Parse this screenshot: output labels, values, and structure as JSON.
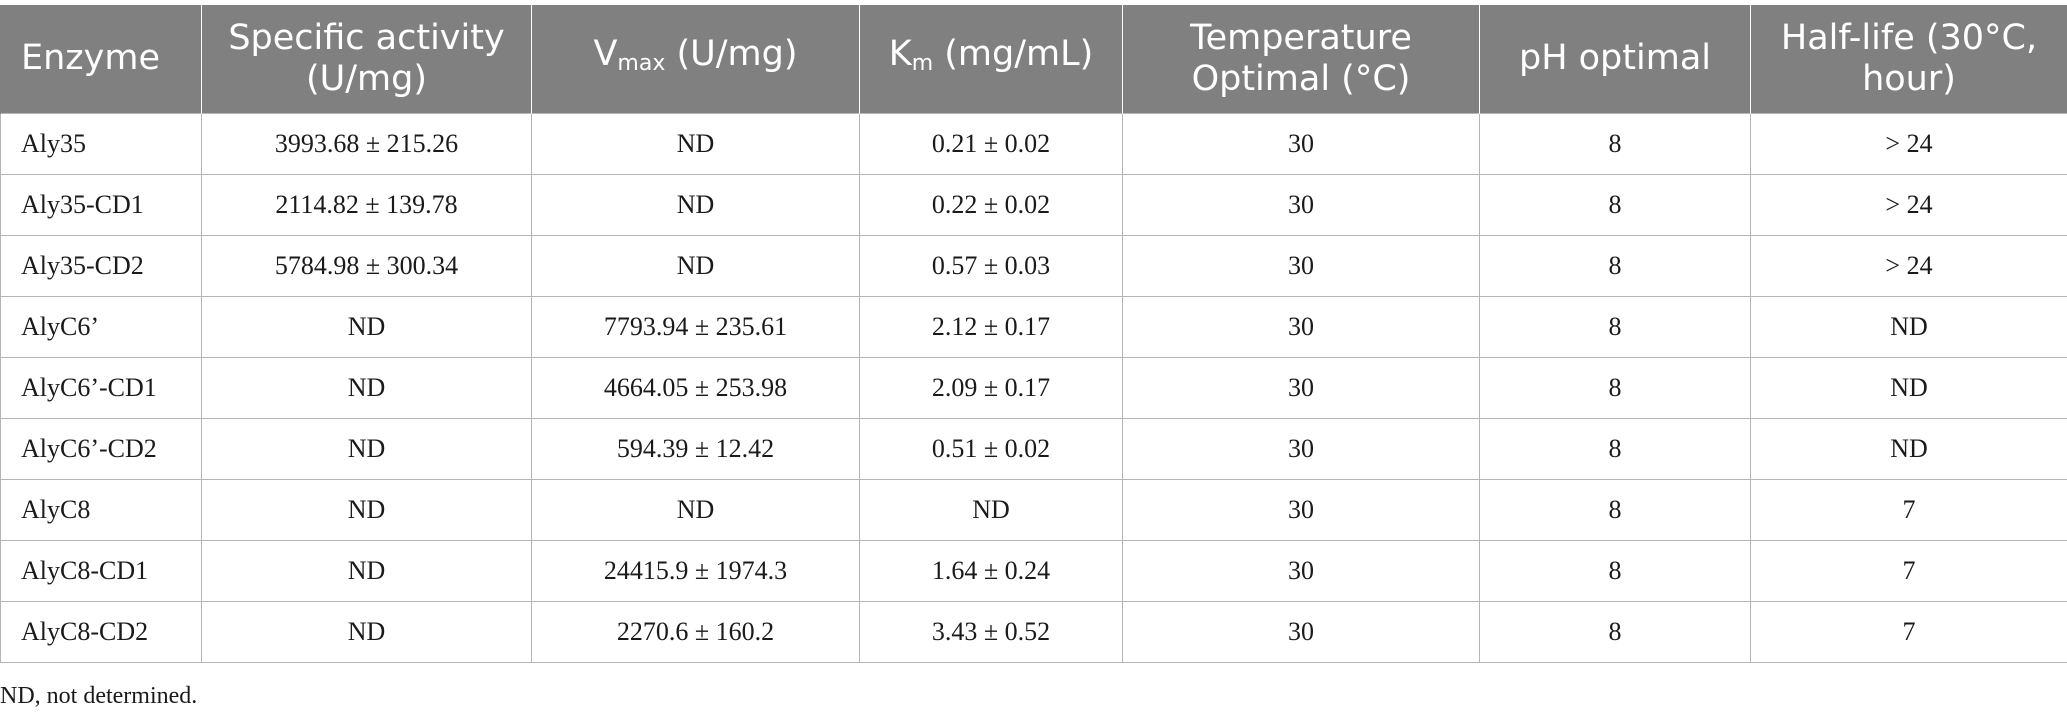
{
  "table": {
    "headers": {
      "enzyme": "Enzyme",
      "specific_activity_line1": "Specific activity",
      "specific_activity_line2": "(U/mg)",
      "vmax_symbol": "V",
      "vmax_subscript": "max",
      "vmax_unit": " (U/mg)",
      "km_symbol": "K",
      "km_subscript": "m",
      "km_unit": " (mg/mL)",
      "temperature_line1": "Temperature",
      "temperature_line2": "Optimal (°C)",
      "ph": "pH optimal",
      "half_life_line1": "Half-life (30°C,",
      "half_life_line2": "hour)"
    },
    "rows": [
      {
        "enzyme": "Aly35",
        "specific_activity": "3993.68 ± 215.26",
        "vmax": "ND",
        "km": "0.21 ± 0.02",
        "temp": "30",
        "ph": "8",
        "half_life": "> 24"
      },
      {
        "enzyme": "Aly35-CD1",
        "specific_activity": "2114.82 ± 139.78",
        "vmax": "ND",
        "km": "0.22 ± 0.02",
        "temp": "30",
        "ph": "8",
        "half_life": "> 24"
      },
      {
        "enzyme": "Aly35-CD2",
        "specific_activity": "5784.98 ± 300.34",
        "vmax": "ND",
        "km": "0.57 ± 0.03",
        "temp": "30",
        "ph": "8",
        "half_life": "> 24"
      },
      {
        "enzyme": "AlyC6’",
        "specific_activity": "ND",
        "vmax": "7793.94 ± 235.61",
        "km": "2.12 ± 0.17",
        "temp": "30",
        "ph": "8",
        "half_life": "ND"
      },
      {
        "enzyme": "AlyC6’-CD1",
        "specific_activity": "ND",
        "vmax": "4664.05 ± 253.98",
        "km": "2.09 ± 0.17",
        "temp": "30",
        "ph": "8",
        "half_life": "ND"
      },
      {
        "enzyme": "AlyC6’-CD2",
        "specific_activity": "ND",
        "vmax": "594.39 ± 12.42",
        "km": "0.51 ± 0.02",
        "temp": "30",
        "ph": "8",
        "half_life": "ND"
      },
      {
        "enzyme": "AlyC8",
        "specific_activity": "ND",
        "vmax": "ND",
        "km": "ND",
        "temp": "30",
        "ph": "8",
        "half_life": "7"
      },
      {
        "enzyme": "AlyC8-CD1",
        "specific_activity": "ND",
        "vmax": "24415.9 ± 1974.3",
        "km": "1.64 ± 0.24",
        "temp": "30",
        "ph": "8",
        "half_life": "7"
      },
      {
        "enzyme": "AlyC8-CD2",
        "specific_activity": "ND",
        "vmax": "2270.6 ± 160.2",
        "km": "3.43 ± 0.52",
        "temp": "30",
        "ph": "8",
        "half_life": "7"
      }
    ]
  },
  "footnote": "ND, not determined.",
  "colors": {
    "header_background": "#808080",
    "header_text": "#ffffff",
    "grid_line": "#b5b5b5"
  }
}
